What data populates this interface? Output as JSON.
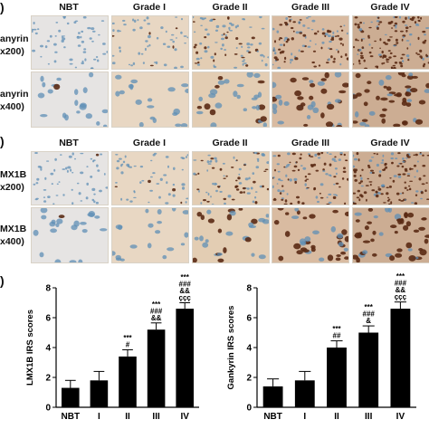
{
  "panels": {
    "a": {
      "letter": ")",
      "columns": [
        "NBT",
        "Grade I",
        "Grade II",
        "Grade III",
        "Grade IV"
      ],
      "row1_label": [
        "anyrin",
        "x200)"
      ],
      "row2_label": [
        "anyrin",
        "x400)"
      ]
    },
    "b": {
      "letter": ")",
      "columns": [
        "NBT",
        "Grade I",
        "Grade II",
        "Grade III",
        "Grade IV"
      ],
      "row1_label": [
        "MX1B",
        "x200)"
      ],
      "row2_label": [
        "MX1B",
        "x400)"
      ]
    },
    "c": {
      "letter": ")"
    }
  },
  "colors": {
    "tissue_bg": [
      "#e6e4e3",
      "#e8d7c3",
      "#e3cdb3",
      "#d9bba1",
      "#ccad93"
    ],
    "nuclei_blue": "#5f8fb6",
    "nuclei_brown": "#5a2a14",
    "bar_fill": "#000000"
  },
  "chart_data": [
    {
      "type": "bar",
      "title": "",
      "xlabel": "",
      "ylabel": "LMX1B IRS scores",
      "categories": [
        "NBT",
        "I",
        "II",
        "III",
        "IV"
      ],
      "values": [
        1.3,
        1.8,
        3.4,
        5.2,
        6.6
      ],
      "errors": [
        0.5,
        0.6,
        0.45,
        0.45,
        0.4
      ],
      "ylim": [
        0,
        8
      ],
      "yticks": [
        "0",
        "2",
        "4",
        "6",
        "8"
      ],
      "annotations": [
        [],
        [],
        [
          "***",
          "#"
        ],
        [
          "***",
          "###",
          "&&"
        ],
        [
          "***",
          "###",
          "&&",
          "ççç"
        ]
      ]
    },
    {
      "type": "bar",
      "title": "",
      "xlabel": "",
      "ylabel": "Gankyrin IRS scores",
      "categories": [
        "NBT",
        "I",
        "II",
        "III",
        "IV"
      ],
      "values": [
        1.4,
        1.8,
        4.0,
        5.0,
        6.6
      ],
      "errors": [
        0.5,
        0.6,
        0.45,
        0.45,
        0.45
      ],
      "ylim": [
        0,
        8
      ],
      "yticks": [
        "0",
        "2",
        "4",
        "6",
        "8"
      ],
      "annotations": [
        [],
        [],
        [
          "***",
          "##"
        ],
        [
          "***",
          "###",
          "&"
        ],
        [
          "***",
          "###",
          "&&",
          "ççç"
        ]
      ]
    }
  ]
}
